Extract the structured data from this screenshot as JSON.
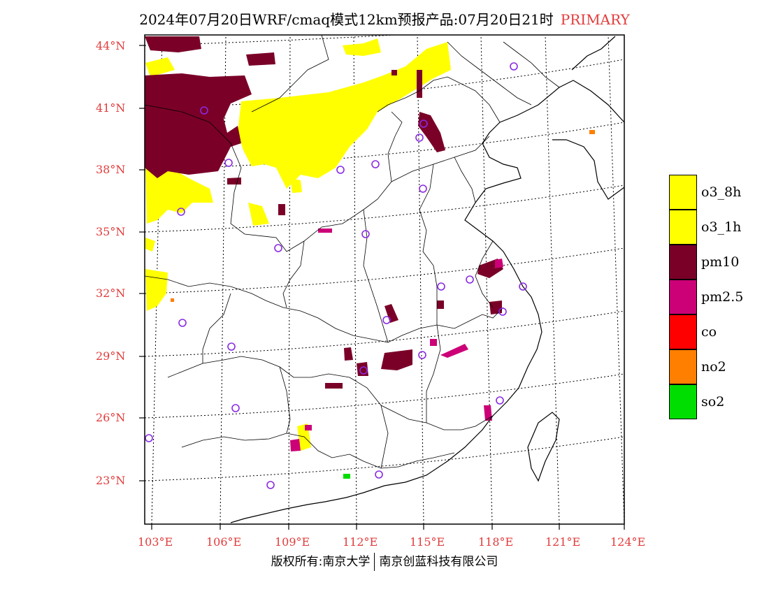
{
  "title": {
    "main": "2024年07月20日WRF/cmaq模式12km预报产品:07月20日21时",
    "tag": "PRIMARY"
  },
  "lat_labels": [
    "44°N",
    "41°N",
    "38°N",
    "35°N",
    "32°N",
    "29°N",
    "26°N",
    "23°N"
  ],
  "lon_labels": [
    "103°E",
    "106°E",
    "109°E",
    "112°E",
    "115°E",
    "118°E",
    "121°E",
    "124°E"
  ],
  "legend": [
    {
      "label": "o3_8h",
      "color": "#ffff00"
    },
    {
      "label": "o3_1h",
      "color": "#ffff00"
    },
    {
      "label": "pm10",
      "color": "#7a0028"
    },
    {
      "label": "pm2.5",
      "color": "#cc0077"
    },
    {
      "label": "co",
      "color": "#ff0000"
    },
    {
      "label": "no2",
      "color": "#ff7f00"
    },
    {
      "label": "so2",
      "color": "#00dd00"
    }
  ],
  "colors": {
    "o3": "#ffff00",
    "pm10": "#7a0028",
    "pm25": "#cc0077",
    "no2": "#ff7f00",
    "so2": "#00dd00",
    "station": "#8a2be2",
    "axis_text": "#e23b3b"
  },
  "footer": {
    "left": "版权所有:南京大学",
    "right": "南京创蓝科技有限公司"
  }
}
